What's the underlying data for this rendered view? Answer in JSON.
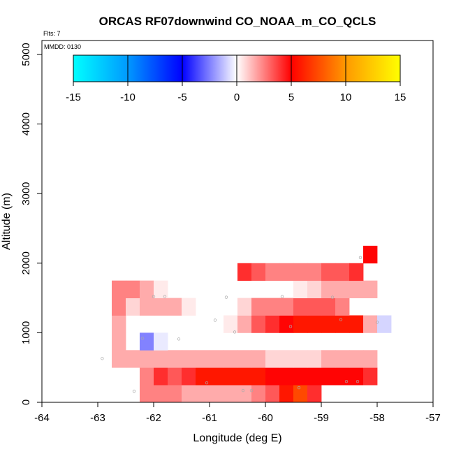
{
  "chart_data": {
    "type": "heatmap",
    "title": "ORCAS RF07downwind CO_NOAA_m_CO_QCLS",
    "flights_label": "Flts: 7",
    "date_label": "MMDD: 0130",
    "xlabel": "Longitude (deg E)",
    "ylabel": "Altitude (m)",
    "xlim": [
      -64,
      -57
    ],
    "ylim": [
      0,
      5200
    ],
    "x_ticks": [
      -64,
      -63,
      -62,
      -61,
      -60,
      -59,
      -58,
      -57
    ],
    "x_tick_labels": [
      "-64",
      "-63",
      "-62",
      "-61",
      "-60",
      "-59",
      "-58",
      "-57"
    ],
    "y_ticks": [
      0,
      1000,
      2000,
      3000,
      4000,
      5000
    ],
    "y_tick_labels": [
      "0",
      "1000",
      "2000",
      "3000",
      "4000",
      "5000"
    ],
    "colorbar": {
      "min": -15,
      "max": 15,
      "ticks": [
        -15,
        -10,
        -5,
        0,
        5,
        10,
        15
      ],
      "tick_labels": [
        "-15",
        "-10",
        "-5",
        "0",
        "5",
        "10",
        "15"
      ]
    },
    "cell_width_lon": 0.25,
    "cell_height_alt": 250,
    "cells": [
      {
        "lon": -62.25,
        "alt": 0,
        "v": 3
      },
      {
        "lon": -62.0,
        "alt": 0,
        "v": 3
      },
      {
        "lon": -61.75,
        "alt": 0,
        "v": 3
      },
      {
        "lon": -61.5,
        "alt": 0,
        "v": 2
      },
      {
        "lon": -61.25,
        "alt": 0,
        "v": 2
      },
      {
        "lon": -61.0,
        "alt": 0,
        "v": 2
      },
      {
        "lon": -60.75,
        "alt": 0,
        "v": 2
      },
      {
        "lon": -60.5,
        "alt": 0,
        "v": 2
      },
      {
        "lon": -60.25,
        "alt": 0,
        "v": 3
      },
      {
        "lon": -60.0,
        "alt": 0,
        "v": 4
      },
      {
        "lon": -59.75,
        "alt": 0,
        "v": 7
      },
      {
        "lon": -59.5,
        "alt": 0,
        "v": 9
      },
      {
        "lon": -59.25,
        "alt": 0,
        "v": 5
      },
      {
        "lon": -62.25,
        "alt": 250,
        "v": 3
      },
      {
        "lon": -62.0,
        "alt": 250,
        "v": 5
      },
      {
        "lon": -61.75,
        "alt": 250,
        "v": 4
      },
      {
        "lon": -61.5,
        "alt": 250,
        "v": 5
      },
      {
        "lon": -61.25,
        "alt": 250,
        "v": 7
      },
      {
        "lon": -61.0,
        "alt": 250,
        "v": 7
      },
      {
        "lon": -60.75,
        "alt": 250,
        "v": 7
      },
      {
        "lon": -60.5,
        "alt": 250,
        "v": 7
      },
      {
        "lon": -60.25,
        "alt": 250,
        "v": 7
      },
      {
        "lon": -60.0,
        "alt": 250,
        "v": 6
      },
      {
        "lon": -59.75,
        "alt": 250,
        "v": 6
      },
      {
        "lon": -59.5,
        "alt": 250,
        "v": 6
      },
      {
        "lon": -59.25,
        "alt": 250,
        "v": 6
      },
      {
        "lon": -59.0,
        "alt": 250,
        "v": 6
      },
      {
        "lon": -58.75,
        "alt": 250,
        "v": 6
      },
      {
        "lon": -58.5,
        "alt": 250,
        "v": 6
      },
      {
        "lon": -58.25,
        "alt": 250,
        "v": 5
      },
      {
        "lon": -62.75,
        "alt": 500,
        "v": 2
      },
      {
        "lon": -62.5,
        "alt": 500,
        "v": 2
      },
      {
        "lon": -62.25,
        "alt": 500,
        "v": 2
      },
      {
        "lon": -62.0,
        "alt": 500,
        "v": 2
      },
      {
        "lon": -61.75,
        "alt": 500,
        "v": 2
      },
      {
        "lon": -61.5,
        "alt": 500,
        "v": 2
      },
      {
        "lon": -61.25,
        "alt": 500,
        "v": 2
      },
      {
        "lon": -61.0,
        "alt": 500,
        "v": 2
      },
      {
        "lon": -60.75,
        "alt": 500,
        "v": 2
      },
      {
        "lon": -60.5,
        "alt": 500,
        "v": 2
      },
      {
        "lon": -60.25,
        "alt": 500,
        "v": 2
      },
      {
        "lon": -60.0,
        "alt": 500,
        "v": 1
      },
      {
        "lon": -59.75,
        "alt": 500,
        "v": 1
      },
      {
        "lon": -59.5,
        "alt": 500,
        "v": 1
      },
      {
        "lon": -59.25,
        "alt": 500,
        "v": 1
      },
      {
        "lon": -59.0,
        "alt": 500,
        "v": 2
      },
      {
        "lon": -58.75,
        "alt": 500,
        "v": 2
      },
      {
        "lon": -58.5,
        "alt": 500,
        "v": 2
      },
      {
        "lon": -58.25,
        "alt": 500,
        "v": 2
      },
      {
        "lon": -62.75,
        "alt": 750,
        "v": 2
      },
      {
        "lon": -62.25,
        "alt": 750,
        "v": -3
      },
      {
        "lon": -62.0,
        "alt": 750,
        "v": -0.5
      },
      {
        "lon": -62.75,
        "alt": 1000,
        "v": 2
      },
      {
        "lon": -60.75,
        "alt": 1000,
        "v": 0.5
      },
      {
        "lon": -60.5,
        "alt": 1000,
        "v": 2
      },
      {
        "lon": -60.25,
        "alt": 1000,
        "v": 4
      },
      {
        "lon": -60.0,
        "alt": 1000,
        "v": 5
      },
      {
        "lon": -59.75,
        "alt": 1000,
        "v": 6
      },
      {
        "lon": -59.5,
        "alt": 1000,
        "v": 7
      },
      {
        "lon": -59.25,
        "alt": 1000,
        "v": 7
      },
      {
        "lon": -59.0,
        "alt": 1000,
        "v": 7
      },
      {
        "lon": -58.75,
        "alt": 1000,
        "v": 7
      },
      {
        "lon": -58.5,
        "alt": 1000,
        "v": 7
      },
      {
        "lon": -58.25,
        "alt": 1000,
        "v": 2
      },
      {
        "lon": -58.0,
        "alt": 1000,
        "v": -1
      },
      {
        "lon": -62.75,
        "alt": 1250,
        "v": 3
      },
      {
        "lon": -62.5,
        "alt": 1250,
        "v": 1
      },
      {
        "lon": -62.25,
        "alt": 1250,
        "v": 2
      },
      {
        "lon": -62.0,
        "alt": 1250,
        "v": 2
      },
      {
        "lon": -61.75,
        "alt": 1250,
        "v": 2
      },
      {
        "lon": -61.5,
        "alt": 1250,
        "v": 0.5
      },
      {
        "lon": -60.5,
        "alt": 1250,
        "v": 1
      },
      {
        "lon": -60.25,
        "alt": 1250,
        "v": 3
      },
      {
        "lon": -60.0,
        "alt": 1250,
        "v": 3
      },
      {
        "lon": -59.75,
        "alt": 1250,
        "v": 3
      },
      {
        "lon": -59.5,
        "alt": 1250,
        "v": 4
      },
      {
        "lon": -59.25,
        "alt": 1250,
        "v": 4
      },
      {
        "lon": -59.0,
        "alt": 1250,
        "v": 4
      },
      {
        "lon": -58.75,
        "alt": 1250,
        "v": 3
      },
      {
        "lon": -62.75,
        "alt": 1500,
        "v": 3
      },
      {
        "lon": -62.5,
        "alt": 1500,
        "v": 3
      },
      {
        "lon": -62.25,
        "alt": 1500,
        "v": 2
      },
      {
        "lon": -62.0,
        "alt": 1500,
        "v": 0.5
      },
      {
        "lon": -59.5,
        "alt": 1500,
        "v": 0.5
      },
      {
        "lon": -59.25,
        "alt": 1500,
        "v": 1
      },
      {
        "lon": -59.0,
        "alt": 1500,
        "v": 2
      },
      {
        "lon": -58.75,
        "alt": 1500,
        "v": 2
      },
      {
        "lon": -58.5,
        "alt": 1500,
        "v": 2
      },
      {
        "lon": -58.25,
        "alt": 1500,
        "v": 2
      },
      {
        "lon": -60.5,
        "alt": 1750,
        "v": 5
      },
      {
        "lon": -60.25,
        "alt": 1750,
        "v": 4
      },
      {
        "lon": -60.0,
        "alt": 1750,
        "v": 3
      },
      {
        "lon": -59.75,
        "alt": 1750,
        "v": 3
      },
      {
        "lon": -59.5,
        "alt": 1750,
        "v": 3
      },
      {
        "lon": -59.25,
        "alt": 1750,
        "v": 3
      },
      {
        "lon": -59.0,
        "alt": 1750,
        "v": 4
      },
      {
        "lon": -58.75,
        "alt": 1750,
        "v": 4
      },
      {
        "lon": -58.5,
        "alt": 1750,
        "v": 5
      },
      {
        "lon": -58.25,
        "alt": 2000,
        "v": 6
      }
    ],
    "points": [
      {
        "lon": -62.35,
        "alt": 160,
        "v": 3
      },
      {
        "lon": -61.05,
        "alt": 280,
        "v": 7
      },
      {
        "lon": -60.4,
        "alt": 170,
        "v": 2
      },
      {
        "lon": -60.25,
        "alt": 170,
        "v": 3
      },
      {
        "lon": -59.4,
        "alt": 210,
        "v": 9
      },
      {
        "lon": -58.55,
        "alt": 300,
        "v": 6
      },
      {
        "lon": -58.35,
        "alt": 300,
        "v": 6
      },
      {
        "lon": -62.92,
        "alt": 630,
        "v": 2
      },
      {
        "lon": -62.2,
        "alt": 920,
        "v": -3
      },
      {
        "lon": -61.55,
        "alt": 910,
        "v": -0.5
      },
      {
        "lon": -60.55,
        "alt": 1010,
        "v": 2
      },
      {
        "lon": -59.55,
        "alt": 1090,
        "v": 7
      },
      {
        "lon": -58.65,
        "alt": 1190,
        "v": 7
      },
      {
        "lon": -58.0,
        "alt": 1150,
        "v": -1
      },
      {
        "lon": -60.9,
        "alt": 1180,
        "v": 1
      },
      {
        "lon": -62.0,
        "alt": 1520,
        "v": 2
      },
      {
        "lon": -61.8,
        "alt": 1520,
        "v": 1
      },
      {
        "lon": -60.7,
        "alt": 1510,
        "v": 0.5
      },
      {
        "lon": -59.7,
        "alt": 1520,
        "v": 1
      },
      {
        "lon": -58.8,
        "alt": 1510,
        "v": 2
      },
      {
        "lon": -58.3,
        "alt": 2080,
        "v": 6
      }
    ]
  }
}
